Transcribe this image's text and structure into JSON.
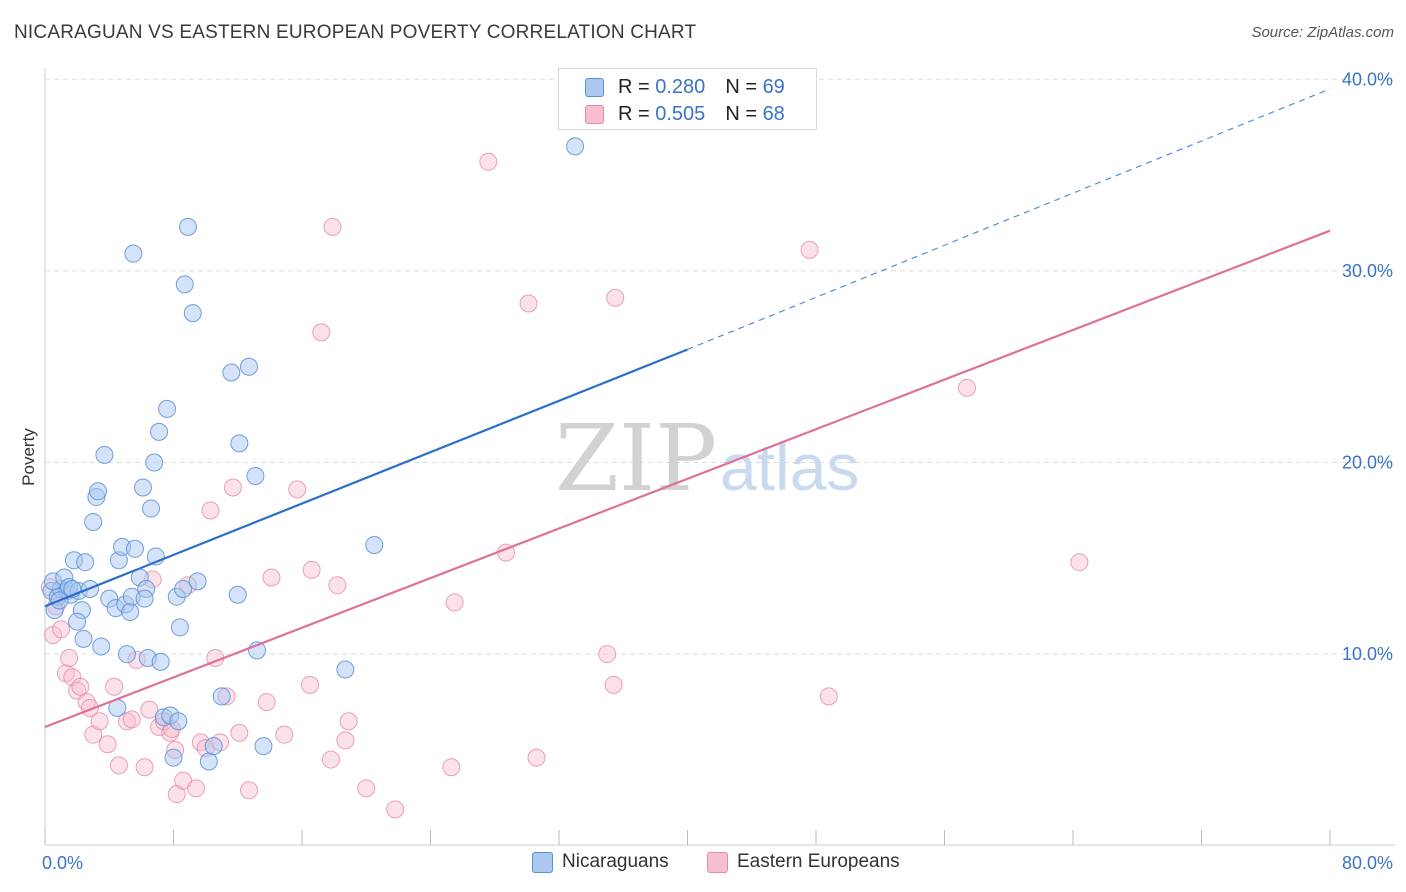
{
  "title": "NICARAGUAN VS EASTERN EUROPEAN POVERTY CORRELATION CHART",
  "source": "Source: ZipAtlas.com",
  "watermark": {
    "zip": "ZIP",
    "atlas": "atlas"
  },
  "legend": {
    "r_label": "R =",
    "n_label": "N =",
    "rows": [
      {
        "name": "Nicaraguans",
        "r": "0.280",
        "n": "69"
      },
      {
        "name": "Eastern Europeans",
        "r": "0.505",
        "n": "68"
      }
    ]
  },
  "colors": {
    "blue_fill": "#aac8f0",
    "blue_stroke": "#5b8fd6",
    "blue_line": "#2a6fcd",
    "pink_fill": "#f6bfd0",
    "pink_stroke": "#e58aa8",
    "pink_line": "#e0709a",
    "axis_text": "#3a73c8",
    "grid": "#dddddd"
  },
  "chart_data": {
    "type": "scatter",
    "title": "NICARAGUAN VS EASTERN EUROPEAN POVERTY CORRELATION CHART",
    "xlabel": "",
    "ylabel": "Poverty",
    "xlim": [
      0,
      80
    ],
    "ylim": [
      0,
      40
    ],
    "x_ticks": [
      0,
      8,
      16,
      24,
      32,
      40,
      48,
      56,
      64,
      72,
      80
    ],
    "x_tick_labels": [
      {
        "value": 0,
        "label": "0.0%"
      },
      {
        "value": 80,
        "label": "80.0%"
      }
    ],
    "y_tick_labels": [
      {
        "value": 10,
        "label": "10.0%"
      },
      {
        "value": 20,
        "label": "20.0%"
      },
      {
        "value": 30,
        "label": "30.0%"
      },
      {
        "value": 40,
        "label": "40.0%"
      }
    ],
    "grid": true,
    "legend_position": "top-center",
    "series": [
      {
        "name": "Nicaraguans",
        "r": 0.28,
        "n": 69,
        "trend": {
          "x0": 0,
          "y0": 12.5,
          "x1": 40,
          "y1": 25.9,
          "dashed_to_x": 80,
          "dashed_to_y": 39.5
        },
        "points": [
          [
            0.4,
            13.3
          ],
          [
            0.6,
            12.3
          ],
          [
            0.8,
            13.0
          ],
          [
            1.0,
            13.4
          ],
          [
            0.5,
            13.8
          ],
          [
            1.2,
            14.0
          ],
          [
            1.4,
            13.3
          ],
          [
            1.6,
            13.1
          ],
          [
            1.5,
            13.5
          ],
          [
            1.8,
            14.9
          ],
          [
            2.1,
            13.3
          ],
          [
            2.3,
            12.3
          ],
          [
            2.0,
            11.7
          ],
          [
            2.5,
            14.8
          ],
          [
            2.4,
            10.8
          ],
          [
            3.0,
            16.9
          ],
          [
            3.2,
            18.2
          ],
          [
            3.3,
            18.5
          ],
          [
            3.5,
            10.4
          ],
          [
            3.7,
            20.4
          ],
          [
            4.0,
            12.9
          ],
          [
            4.4,
            12.4
          ],
          [
            4.6,
            14.9
          ],
          [
            4.8,
            15.6
          ],
          [
            4.5,
            7.2
          ],
          [
            5.0,
            12.6
          ],
          [
            5.1,
            10.0
          ],
          [
            5.3,
            12.2
          ],
          [
            5.4,
            13.0
          ],
          [
            5.6,
            15.5
          ],
          [
            5.5,
            30.9
          ],
          [
            5.9,
            14.0
          ],
          [
            6.1,
            18.7
          ],
          [
            6.3,
            13.4
          ],
          [
            6.4,
            9.8
          ],
          [
            6.6,
            17.6
          ],
          [
            6.8,
            20.0
          ],
          [
            6.9,
            15.1
          ],
          [
            7.1,
            21.6
          ],
          [
            7.2,
            9.6
          ],
          [
            7.4,
            6.7
          ],
          [
            7.6,
            22.8
          ],
          [
            7.8,
            6.8
          ],
          [
            8.0,
            4.6
          ],
          [
            8.2,
            13.0
          ],
          [
            8.3,
            6.5
          ],
          [
            8.4,
            11.4
          ],
          [
            8.6,
            13.4
          ],
          [
            8.7,
            29.3
          ],
          [
            8.9,
            32.3
          ],
          [
            9.2,
            27.8
          ],
          [
            9.5,
            13.8
          ],
          [
            10.2,
            4.4
          ],
          [
            10.5,
            5.2
          ],
          [
            11.0,
            7.8
          ],
          [
            11.6,
            24.7
          ],
          [
            12.0,
            13.1
          ],
          [
            12.1,
            21.0
          ],
          [
            12.7,
            25.0
          ],
          [
            13.1,
            19.3
          ],
          [
            13.2,
            10.2
          ],
          [
            13.6,
            5.2
          ],
          [
            18.7,
            9.2
          ],
          [
            20.5,
            15.7
          ],
          [
            33.0,
            36.5
          ],
          [
            1.7,
            13.4
          ],
          [
            2.8,
            13.4
          ],
          [
            0.9,
            12.8
          ],
          [
            6.2,
            12.9
          ]
        ]
      },
      {
        "name": "Eastern Europeans",
        "r": 0.505,
        "n": 68,
        "trend": {
          "x0": 0,
          "y0": 6.2,
          "x1": 80,
          "y1": 32.1
        },
        "points": [
          [
            0.3,
            13.5
          ],
          [
            0.5,
            11.0
          ],
          [
            0.7,
            12.5
          ],
          [
            0.8,
            13.0
          ],
          [
            1.0,
            11.3
          ],
          [
            1.3,
            9.0
          ],
          [
            1.5,
            9.8
          ],
          [
            1.7,
            8.8
          ],
          [
            2.0,
            8.1
          ],
          [
            2.2,
            8.3
          ],
          [
            2.6,
            7.5
          ],
          [
            2.8,
            7.2
          ],
          [
            3.0,
            5.8
          ],
          [
            3.4,
            6.5
          ],
          [
            3.9,
            5.3
          ],
          [
            4.3,
            8.3
          ],
          [
            4.6,
            4.2
          ],
          [
            5.1,
            6.5
          ],
          [
            5.4,
            6.6
          ],
          [
            5.7,
            9.7
          ],
          [
            6.2,
            4.1
          ],
          [
            6.5,
            7.1
          ],
          [
            6.7,
            13.9
          ],
          [
            7.1,
            6.2
          ],
          [
            7.4,
            6.5
          ],
          [
            7.8,
            5.9
          ],
          [
            7.9,
            6.1
          ],
          [
            8.1,
            5.0
          ],
          [
            8.2,
            2.7
          ],
          [
            8.6,
            3.4
          ],
          [
            8.9,
            13.6
          ],
          [
            9.4,
            3.0
          ],
          [
            9.7,
            5.4
          ],
          [
            10.0,
            5.1
          ],
          [
            10.3,
            17.5
          ],
          [
            10.6,
            9.8
          ],
          [
            10.9,
            5.4
          ],
          [
            11.3,
            7.8
          ],
          [
            11.7,
            18.7
          ],
          [
            12.1,
            5.9
          ],
          [
            12.7,
            2.9
          ],
          [
            13.8,
            7.5
          ],
          [
            14.1,
            14.0
          ],
          [
            14.9,
            5.8
          ],
          [
            15.7,
            18.6
          ],
          [
            16.5,
            8.4
          ],
          [
            16.6,
            14.4
          ],
          [
            17.2,
            26.8
          ],
          [
            17.8,
            4.5
          ],
          [
            17.9,
            32.3
          ],
          [
            18.2,
            13.6
          ],
          [
            18.7,
            5.5
          ],
          [
            18.9,
            6.5
          ],
          [
            20.0,
            3.0
          ],
          [
            21.8,
            1.9
          ],
          [
            25.3,
            4.1
          ],
          [
            25.5,
            12.7
          ],
          [
            27.6,
            35.7
          ],
          [
            28.7,
            15.3
          ],
          [
            30.1,
            28.3
          ],
          [
            30.6,
            4.6
          ],
          [
            35.0,
            10.0
          ],
          [
            35.4,
            8.4
          ],
          [
            35.5,
            28.6
          ],
          [
            47.6,
            31.1
          ],
          [
            48.8,
            7.8
          ],
          [
            57.4,
            23.9
          ],
          [
            64.4,
            14.8
          ]
        ]
      }
    ]
  }
}
